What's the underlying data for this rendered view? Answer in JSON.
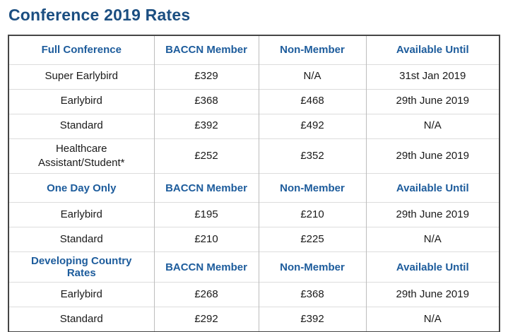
{
  "page": {
    "title": "Conference 2019 Rates"
  },
  "colors": {
    "title_color": "#1b4e81",
    "header_color": "#1d5c9c",
    "body_text": "#1a1a1a",
    "outer_border": "#454545",
    "row_border": "#dcdcdc",
    "col_border": "#bdbdbd",
    "bg": "#ffffff"
  },
  "table": {
    "sections": [
      {
        "header": [
          "Full Conference",
          "BACCN Member",
          "Non-Member",
          "Available Until"
        ],
        "rows": [
          [
            "Super Earlybird",
            "£329",
            "N/A",
            "31st Jan 2019"
          ],
          [
            "Earlybird",
            "£368",
            "£468",
            "29th June 2019"
          ],
          [
            "Standard",
            "£392",
            "£492",
            "N/A"
          ],
          [
            "Healthcare Assistant/Student*",
            "£252",
            "£352",
            "29th June 2019"
          ]
        ]
      },
      {
        "header": [
          "One Day Only",
          "BACCN Member",
          "Non-Member",
          "Available Until"
        ],
        "rows": [
          [
            "Earlybird",
            "£195",
            "£210",
            "29th June 2019"
          ],
          [
            "Standard",
            "£210",
            "£225",
            "N/A"
          ]
        ]
      },
      {
        "header": [
          "Developing Country Rates",
          "BACCN Member",
          "Non-Member",
          "Available Until"
        ],
        "rows": [
          [
            "Earlybird",
            "£268",
            "£368",
            "29th June 2019"
          ],
          [
            "Standard",
            "£292",
            "£392",
            "N/A"
          ]
        ]
      }
    ]
  }
}
